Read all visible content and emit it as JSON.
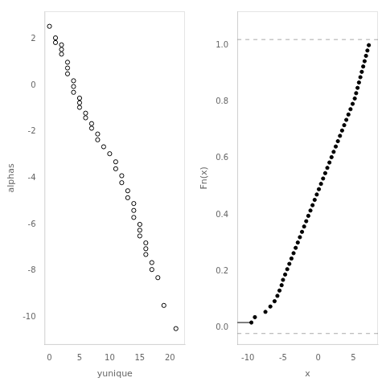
{
  "chart_data": [
    {
      "type": "scatter",
      "xlabel": "yunique",
      "ylabel": "alphas",
      "x": [
        0,
        1,
        1,
        2,
        2,
        2,
        3,
        3,
        3,
        4,
        4,
        4,
        5,
        5,
        5,
        6,
        6,
        7,
        7,
        8,
        8,
        9,
        10,
        11,
        11,
        12,
        12,
        13,
        13,
        14,
        14,
        14,
        15,
        15,
        15,
        16,
        16,
        16,
        17,
        17,
        18,
        19,
        21
      ],
      "values": [
        2.55,
        2.05,
        1.85,
        1.75,
        1.55,
        1.35,
        1.0,
        0.75,
        0.5,
        0.2,
        -0.05,
        -0.3,
        -0.55,
        -0.75,
        -0.95,
        -1.2,
        -1.4,
        -1.65,
        -1.85,
        -2.1,
        -2.35,
        -2.65,
        -2.95,
        -3.3,
        -3.6,
        -3.9,
        -4.2,
        -4.55,
        -4.85,
        -5.1,
        -5.4,
        -5.7,
        -6.0,
        -6.25,
        -6.5,
        -6.8,
        -7.05,
        -7.3,
        -7.65,
        -7.95,
        -8.3,
        -9.5,
        -10.5
      ],
      "color": "#000000",
      "marker": "open_circle",
      "xlim": [
        -0.8,
        22.5
      ],
      "ylim": [
        -11.2,
        3.2
      ],
      "xticks": [
        0,
        5,
        10,
        15,
        20
      ],
      "yticks": [
        2,
        0,
        -2,
        -4,
        -6,
        -8,
        -10
      ],
      "grid": false
    },
    {
      "type": "scatter",
      "xlabel": "x",
      "ylabel": "Fn(x)",
      "series": [
        {
          "type": "scatter",
          "marker": "circle",
          "color": "#000000",
          "x": [
            -9.5,
            -9.0,
            -7.5,
            -6.8,
            -6.2,
            -5.8,
            -5.5,
            -5.2,
            -5.0,
            -4.7,
            -4.4,
            -4.1,
            -3.8,
            -3.5,
            -3.2,
            -2.9,
            -2.6,
            -2.3,
            -2.0,
            -1.7,
            -1.4,
            -1.1,
            -0.8,
            -0.5,
            -0.2,
            0.1,
            0.4,
            0.7,
            1.0,
            1.3,
            1.6,
            1.9,
            2.2,
            2.5,
            2.8,
            3.1,
            3.4,
            3.7,
            4.0,
            4.3,
            4.6,
            4.9,
            5.2,
            5.4,
            5.6,
            5.8,
            6.0,
            6.2,
            6.4,
            6.6,
            6.8,
            7.0,
            7.2
          ],
          "values": [
            0.018868,
            0.037736,
            0.056604,
            0.075472,
            0.09434,
            0.113208,
            0.132075,
            0.150943,
            0.169811,
            0.188679,
            0.207547,
            0.226415,
            0.245283,
            0.264151,
            0.283019,
            0.301887,
            0.320755,
            0.339623,
            0.358491,
            0.377358,
            0.396226,
            0.415094,
            0.433962,
            0.45283,
            0.471698,
            0.490566,
            0.509434,
            0.528302,
            0.54717,
            0.566038,
            0.584906,
            0.603774,
            0.622642,
            0.641509,
            0.660377,
            0.679245,
            0.698113,
            0.716981,
            0.735849,
            0.754717,
            0.773585,
            0.792453,
            0.811321,
            0.830189,
            0.849057,
            0.867925,
            0.886792,
            0.90566,
            0.924528,
            0.943396,
            0.962264,
            0.981132,
            1
          ]
        },
        {
          "type": "line",
          "line_style": "solid",
          "color": "#000000",
          "x": [
            -11.5,
            -9.5
          ],
          "values": [
            0.018868,
            0.018868
          ]
        },
        {
          "type": "line",
          "line_style": "dashed",
          "color": "#aaaaaa",
          "x": [
            -11.5,
            8.5
          ],
          "values": [
            -0.02,
            -0.02
          ]
        },
        {
          "type": "line",
          "line_style": "dashed",
          "color": "#aaaaaa",
          "x": [
            -11.5,
            8.5
          ],
          "values": [
            1.02,
            1.02
          ]
        }
      ],
      "xlim": [
        -11.5,
        8.5
      ],
      "ylim": [
        -0.06,
        1.12
      ],
      "xticks": [
        -10,
        -5,
        0,
        5
      ],
      "yticks": [
        {
          "value": 0,
          "label": "0.0"
        },
        0.2,
        0.4,
        0.6,
        0.8,
        {
          "value": 1,
          "label": "1.0"
        }
      ],
      "grid": false
    }
  ]
}
